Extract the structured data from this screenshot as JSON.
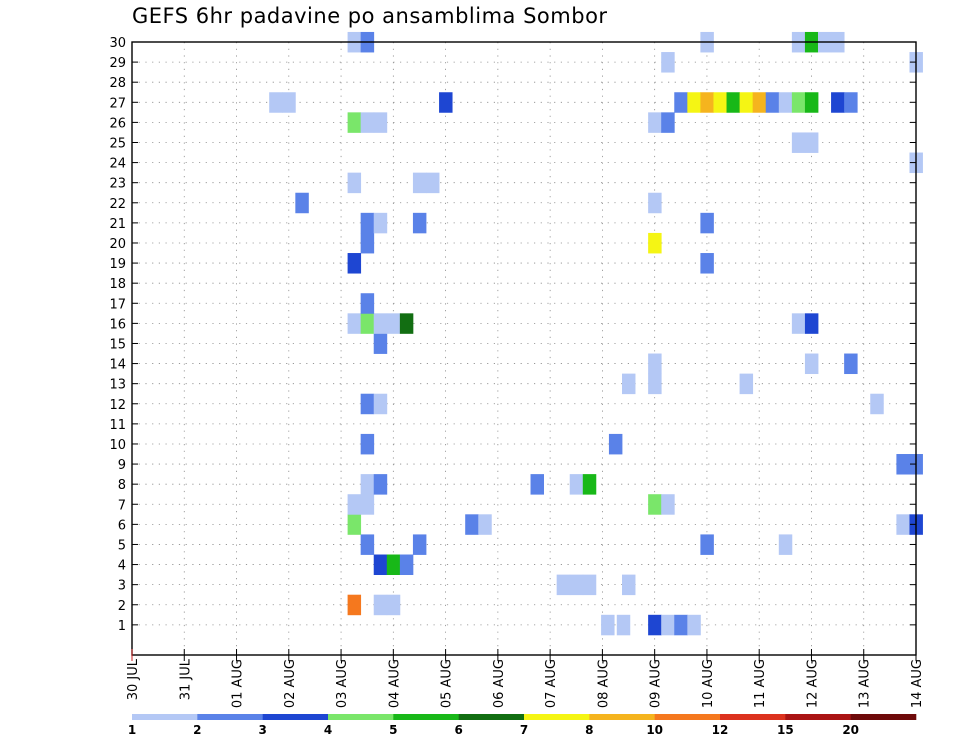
{
  "chart_data": {
    "type": "heatmap",
    "title": "GEFS 6hr padavine po ansamblima Sombor",
    "x_tick_labels": [
      "30 JUL",
      "31 JUL",
      "01 AUG",
      "02 AUG",
      "03 AUG",
      "04 AUG",
      "05 AUG",
      "06 AUG",
      "07 AUG",
      "08 AUG",
      "09 AUG",
      "10 AUG",
      "11 AUG",
      "12 AUG",
      "13 AUG",
      "14 AUG"
    ],
    "y_tick_labels": [
      1,
      2,
      3,
      4,
      5,
      6,
      7,
      8,
      9,
      10,
      11,
      12,
      13,
      14,
      15,
      16,
      17,
      18,
      19,
      20,
      21,
      22,
      23,
      24,
      25,
      26,
      27,
      28,
      29,
      30
    ],
    "ylim": [
      0,
      30
    ],
    "grid": true,
    "color_scale": {
      "labels": [
        "1",
        "2",
        "3",
        "4",
        "5",
        "6",
        "7",
        "8",
        "10",
        "12",
        "15",
        "20"
      ],
      "colors": [
        "#b4c8f5",
        "#5a82e8",
        "#1e46d2",
        "#7ae66a",
        "#18b818",
        "#126e12",
        "#f5f514",
        "#f5b41e",
        "#f5781e",
        "#dc321e",
        "#aa1414",
        "#6e0a0a"
      ]
    },
    "cells": [
      {
        "ens": 1,
        "t": 9.1,
        "c": "#b4c8f5"
      },
      {
        "ens": 1,
        "t": 9.4,
        "c": "#b4c8f5"
      },
      {
        "ens": 1,
        "t": 10,
        "c": "#1e46d2"
      },
      {
        "ens": 1,
        "t": 10.25,
        "c": "#b4c8f5"
      },
      {
        "ens": 1,
        "t": 10.5,
        "c": "#5a82e8"
      },
      {
        "ens": 1,
        "t": 10.75,
        "c": "#b4c8f5"
      },
      {
        "ens": 2,
        "t": 4.25,
        "c": "#f5781e"
      },
      {
        "ens": 2,
        "t": 4.75,
        "c": "#b4c8f5"
      },
      {
        "ens": 2,
        "t": 5,
        "c": "#b4c8f5"
      },
      {
        "ens": 3,
        "t": 8.25,
        "c": "#b4c8f5"
      },
      {
        "ens": 3,
        "t": 8.5,
        "c": "#b4c8f5"
      },
      {
        "ens": 3,
        "t": 8.75,
        "c": "#b4c8f5"
      },
      {
        "ens": 3,
        "t": 9.5,
        "c": "#b4c8f5"
      },
      {
        "ens": 4,
        "t": 4.75,
        "c": "#1e46d2"
      },
      {
        "ens": 4,
        "t": 5,
        "c": "#18b818"
      },
      {
        "ens": 4,
        "t": 5.25,
        "c": "#5a82e8"
      },
      {
        "ens": 5,
        "t": 4.5,
        "c": "#5a82e8"
      },
      {
        "ens": 5,
        "t": 5.5,
        "c": "#5a82e8"
      },
      {
        "ens": 5,
        "t": 11,
        "c": "#5a82e8"
      },
      {
        "ens": 5,
        "t": 12.5,
        "c": "#b4c8f5"
      },
      {
        "ens": 6,
        "t": 4.25,
        "c": "#7ae66a"
      },
      {
        "ens": 6,
        "t": 6.5,
        "c": "#5a82e8"
      },
      {
        "ens": 6,
        "t": 6.75,
        "c": "#b4c8f5"
      },
      {
        "ens": 6,
        "t": 14.75,
        "c": "#b4c8f5"
      },
      {
        "ens": 6,
        "t": 15,
        "c": "#1e46d2"
      },
      {
        "ens": 7,
        "t": 4.25,
        "c": "#b4c8f5"
      },
      {
        "ens": 7,
        "t": 4.5,
        "c": "#b4c8f5"
      },
      {
        "ens": 7,
        "t": 10,
        "c": "#7ae66a"
      },
      {
        "ens": 7,
        "t": 10.25,
        "c": "#b4c8f5"
      },
      {
        "ens": 8,
        "t": 4.5,
        "c": "#b4c8f5"
      },
      {
        "ens": 8,
        "t": 4.75,
        "c": "#5a82e8"
      },
      {
        "ens": 8,
        "t": 7.75,
        "c": "#5a82e8"
      },
      {
        "ens": 8,
        "t": 8.5,
        "c": "#b4c8f5"
      },
      {
        "ens": 8,
        "t": 8.75,
        "c": "#18b818"
      },
      {
        "ens": 9,
        "t": 14.75,
        "c": "#5a82e8"
      },
      {
        "ens": 9,
        "t": 15,
        "c": "#5a82e8"
      },
      {
        "ens": 10,
        "t": 4.5,
        "c": "#5a82e8"
      },
      {
        "ens": 10,
        "t": 9.25,
        "c": "#5a82e8"
      },
      {
        "ens": 12,
        "t": 4.5,
        "c": "#5a82e8"
      },
      {
        "ens": 12,
        "t": 4.75,
        "c": "#b4c8f5"
      },
      {
        "ens": 12,
        "t": 14.25,
        "c": "#b4c8f5"
      },
      {
        "ens": 13,
        "t": 9.5,
        "c": "#b4c8f5"
      },
      {
        "ens": 13,
        "t": 10,
        "c": "#b4c8f5"
      },
      {
        "ens": 13,
        "t": 11.75,
        "c": "#b4c8f5"
      },
      {
        "ens": 14,
        "t": 10,
        "c": "#b4c8f5"
      },
      {
        "ens": 14,
        "t": 13,
        "c": "#b4c8f5"
      },
      {
        "ens": 14,
        "t": 13.75,
        "c": "#5a82e8"
      },
      {
        "ens": 15,
        "t": 4.75,
        "c": "#5a82e8"
      },
      {
        "ens": 16,
        "t": 4.25,
        "c": "#b4c8f5"
      },
      {
        "ens": 16,
        "t": 4.5,
        "c": "#7ae66a"
      },
      {
        "ens": 16,
        "t": 4.75,
        "c": "#b4c8f5"
      },
      {
        "ens": 16,
        "t": 5,
        "c": "#b4c8f5"
      },
      {
        "ens": 16,
        "t": 5.25,
        "c": "#126e12"
      },
      {
        "ens": 16,
        "t": 12.75,
        "c": "#b4c8f5"
      },
      {
        "ens": 16,
        "t": 13,
        "c": "#1e46d2"
      },
      {
        "ens": 17,
        "t": 4.5,
        "c": "#5a82e8"
      },
      {
        "ens": 19,
        "t": 4.25,
        "c": "#1e46d2"
      },
      {
        "ens": 19,
        "t": 11,
        "c": "#5a82e8"
      },
      {
        "ens": 20,
        "t": 4.5,
        "c": "#5a82e8"
      },
      {
        "ens": 20,
        "t": 10,
        "c": "#f5f514"
      },
      {
        "ens": 21,
        "t": 4.5,
        "c": "#5a82e8"
      },
      {
        "ens": 21,
        "t": 4.75,
        "c": "#b4c8f5"
      },
      {
        "ens": 21,
        "t": 5.5,
        "c": "#5a82e8"
      },
      {
        "ens": 21,
        "t": 11,
        "c": "#5a82e8"
      },
      {
        "ens": 22,
        "t": 3.25,
        "c": "#5a82e8"
      },
      {
        "ens": 22,
        "t": 10,
        "c": "#b4c8f5"
      },
      {
        "ens": 23,
        "t": 4.25,
        "c": "#b4c8f5"
      },
      {
        "ens": 23,
        "t": 5.5,
        "c": "#b4c8f5"
      },
      {
        "ens": 23,
        "t": 5.75,
        "c": "#b4c8f5"
      },
      {
        "ens": 24,
        "t": 15,
        "c": "#b4c8f5"
      },
      {
        "ens": 25,
        "t": 12.75,
        "c": "#b4c8f5"
      },
      {
        "ens": 25,
        "t": 13,
        "c": "#b4c8f5"
      },
      {
        "ens": 26,
        "t": 4.25,
        "c": "#7ae66a"
      },
      {
        "ens": 26,
        "t": 4.5,
        "c": "#b4c8f5"
      },
      {
        "ens": 26,
        "t": 4.75,
        "c": "#b4c8f5"
      },
      {
        "ens": 26,
        "t": 10,
        "c": "#b4c8f5"
      },
      {
        "ens": 26,
        "t": 10.25,
        "c": "#5a82e8"
      },
      {
        "ens": 27,
        "t": 2.75,
        "c": "#b4c8f5"
      },
      {
        "ens": 27,
        "t": 3,
        "c": "#b4c8f5"
      },
      {
        "ens": 27,
        "t": 6,
        "c": "#1e46d2"
      },
      {
        "ens": 27,
        "t": 10.5,
        "c": "#5a82e8"
      },
      {
        "ens": 27,
        "t": 10.75,
        "c": "#f5f514"
      },
      {
        "ens": 27,
        "t": 11,
        "c": "#f5b41e"
      },
      {
        "ens": 27,
        "t": 11.25,
        "c": "#f5f514"
      },
      {
        "ens": 27,
        "t": 11.5,
        "c": "#18b818"
      },
      {
        "ens": 27,
        "t": 11.75,
        "c": "#f5f514"
      },
      {
        "ens": 27,
        "t": 12,
        "c": "#f5b41e"
      },
      {
        "ens": 27,
        "t": 12.25,
        "c": "#5a82e8"
      },
      {
        "ens": 27,
        "t": 12.5,
        "c": "#b4c8f5"
      },
      {
        "ens": 27,
        "t": 12.75,
        "c": "#7ae66a"
      },
      {
        "ens": 27,
        "t": 13,
        "c": "#18b818"
      },
      {
        "ens": 27,
        "t": 13.5,
        "c": "#1e46d2"
      },
      {
        "ens": 27,
        "t": 13.75,
        "c": "#5a82e8"
      },
      {
        "ens": 29,
        "t": 10.25,
        "c": "#b4c8f5"
      },
      {
        "ens": 29,
        "t": 15,
        "c": "#b4c8f5"
      },
      {
        "ens": 30,
        "t": 4.25,
        "c": "#b4c8f5"
      },
      {
        "ens": 30,
        "t": 4.5,
        "c": "#5a82e8"
      },
      {
        "ens": 30,
        "t": 11,
        "c": "#b4c8f5"
      },
      {
        "ens": 30,
        "t": 12.75,
        "c": "#b4c8f5"
      },
      {
        "ens": 30,
        "t": 13,
        "c": "#18b818"
      },
      {
        "ens": 30,
        "t": 13.25,
        "c": "#b4c8f5"
      },
      {
        "ens": 30,
        "t": 13.5,
        "c": "#b4c8f5"
      }
    ]
  }
}
